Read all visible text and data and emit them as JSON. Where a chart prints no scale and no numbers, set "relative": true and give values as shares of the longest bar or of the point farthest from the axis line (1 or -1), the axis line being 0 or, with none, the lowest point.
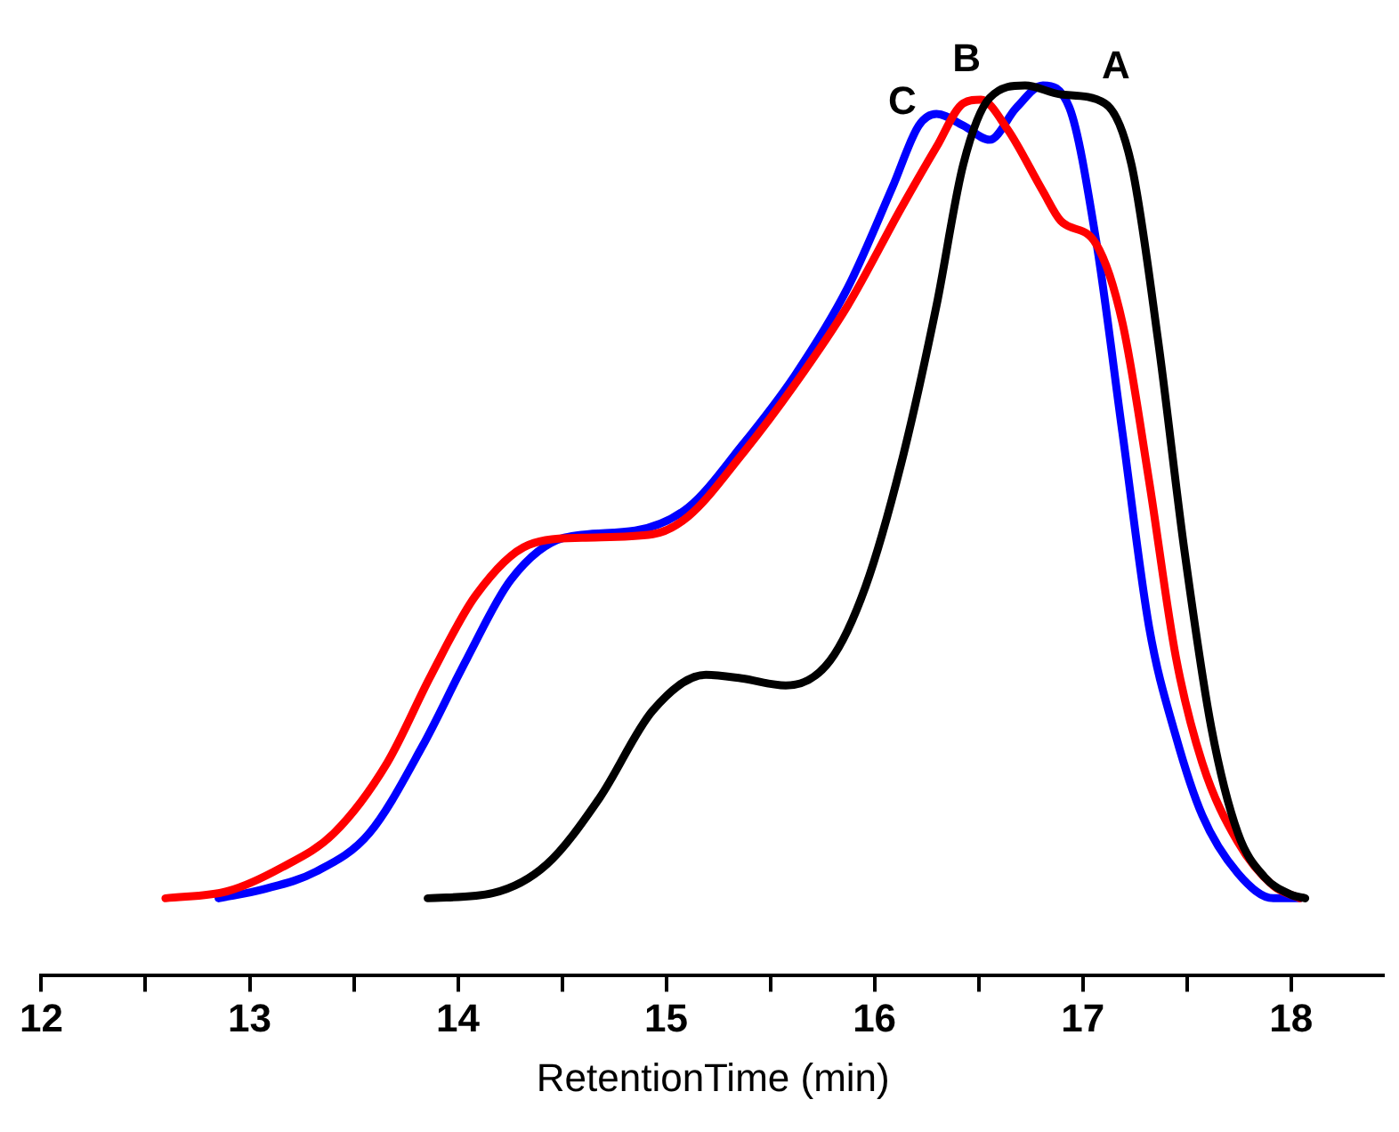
{
  "chart_data": {
    "type": "line",
    "relative": true,
    "xlabel": "RetentionTime (min)",
    "xlim": [
      12,
      18.45
    ],
    "xticks": [
      12,
      {
        "value": 12.5,
        "label": null
      },
      13,
      {
        "value": 13.5,
        "label": null
      },
      14,
      {
        "value": 14.5,
        "label": null
      },
      15,
      {
        "value": 15.5,
        "label": null
      },
      16,
      {
        "value": 16.5,
        "label": null
      },
      17,
      {
        "value": 17.5,
        "label": null
      },
      18
    ],
    "grid": false,
    "legend": false,
    "marker": "none",
    "line_style": "solid",
    "tick_labels": "x",
    "series": [
      {
        "name": "A",
        "color": "#000000",
        "x": [
          13.855,
          14.17,
          14.426,
          14.681,
          14.936,
          15.191,
          15.362,
          15.574,
          15.787,
          15.957,
          16.128,
          16.298,
          16.426,
          16.553,
          16.723,
          16.894,
          17.106,
          17.234,
          17.362,
          17.489,
          17.617,
          17.745,
          17.872,
          18.0,
          18.068
        ],
        "values": [
          0.087,
          0.093,
          0.125,
          0.2,
          0.298,
          0.338,
          0.334,
          0.326,
          0.354,
          0.437,
          0.575,
          0.753,
          0.911,
          0.986,
          1.0,
          0.99,
          0.98,
          0.911,
          0.713,
          0.476,
          0.279,
          0.16,
          0.111,
          0.091,
          0.087
        ]
      },
      {
        "name": "B",
        "color": "#ff0000",
        "x": [
          12.596,
          12.894,
          13.149,
          13.404,
          13.66,
          13.872,
          14.085,
          14.34,
          14.596,
          14.936,
          15.106,
          15.362,
          15.617,
          15.872,
          16.128,
          16.298,
          16.426,
          16.511,
          16.638,
          16.809,
          16.894,
          17.064,
          17.191,
          17.319,
          17.447,
          17.574,
          17.745,
          17.915,
          18.043
        ],
        "values": [
          0.087,
          0.095,
          0.121,
          0.16,
          0.239,
          0.338,
          0.427,
          0.484,
          0.492,
          0.496,
          0.516,
          0.585,
          0.664,
          0.753,
          0.862,
          0.931,
          0.98,
          0.984,
          0.951,
          0.881,
          0.848,
          0.822,
          0.733,
          0.555,
          0.358,
          0.239,
          0.15,
          0.101,
          0.087
        ]
      },
      {
        "name": "C",
        "color": "#0000ff",
        "x": [
          12.851,
          13.064,
          13.319,
          13.574,
          13.83,
          14.043,
          14.255,
          14.511,
          14.851,
          15.106,
          15.362,
          15.617,
          15.872,
          16.085,
          16.213,
          16.298,
          16.426,
          16.553,
          16.681,
          16.809,
          16.936,
          17.064,
          17.191,
          17.319,
          17.447,
          17.574,
          17.745,
          17.915,
          18.043
        ],
        "values": [
          0.087,
          0.097,
          0.117,
          0.16,
          0.258,
          0.356,
          0.445,
          0.492,
          0.5,
          0.526,
          0.595,
          0.674,
          0.773,
          0.885,
          0.955,
          0.968,
          0.955,
          0.939,
          0.975,
          1.0,
          0.975,
          0.826,
          0.609,
          0.391,
          0.269,
          0.18,
          0.115,
          0.087,
          0.087
        ]
      }
    ]
  }
}
